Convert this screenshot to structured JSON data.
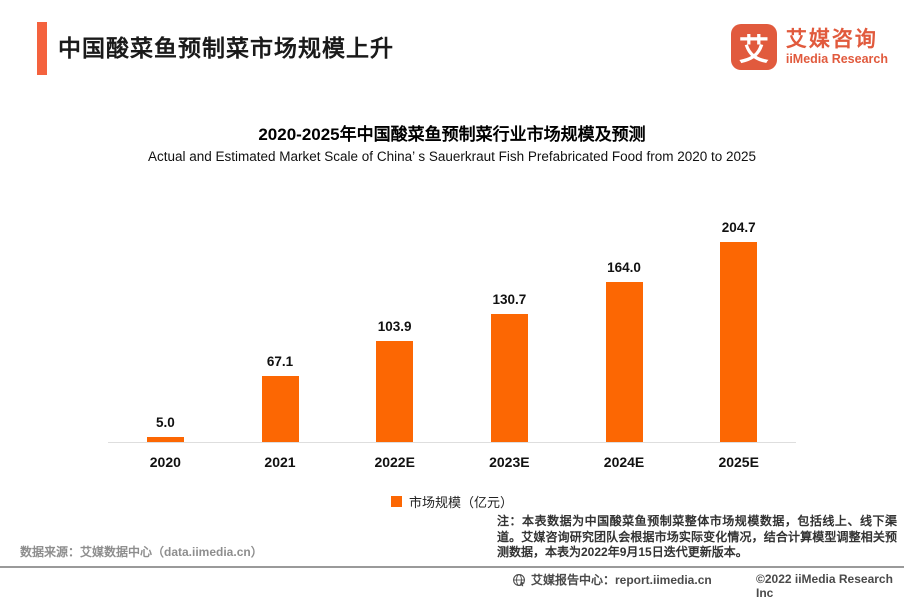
{
  "header": {
    "title": "中国酸菜鱼预制菜市场规模上升",
    "logo": {
      "icon_glyph": "艾",
      "brand_cn": "艾媒咨询",
      "brand_en": "iiMedia Research"
    }
  },
  "chart_data": {
    "type": "bar",
    "title": "2020-2025年中国酸菜鱼预制菜行业市场规模及预测",
    "subtitle": "Actual and Estimated Market Scale of China’ s Sauerkraut Fish Prefabricated Food from 2020 to 2025",
    "categories": [
      "2020",
      "2021",
      "2022E",
      "2023E",
      "2024E",
      "2025E"
    ],
    "values": [
      5.0,
      67.1,
      103.9,
      130.7,
      164.0,
      204.7
    ],
    "value_labels": [
      "5.0",
      "67.1",
      "103.9",
      "130.7",
      "164.0",
      "204.7"
    ],
    "legend": [
      "市场规模（亿元）"
    ],
    "legend_position": "bottom-center",
    "xlabel": "",
    "ylabel": "",
    "ylim": [
      0,
      210
    ],
    "grid": false,
    "bar_color": "#FC6703"
  },
  "note": "注：本表数据为中国酸菜鱼预制菜整体市场规模数据，包括线上、线下渠道。艾媒咨询研究团队会根据市场实际变化情况，结合计算模型调整相关预测数据，本表为2022年9月15日迭代更新版本。",
  "source": "数据来源：艾媒数据中心（data.iimedia.cn）",
  "footer": {
    "report_center": "艾媒报告中心：report.iimedia.cn",
    "copyright": "©2022  iiMedia Research Inc"
  },
  "colors": {
    "bar": "#FC6703",
    "accent": "#F4623E",
    "logo": "#E15A3D",
    "axis_line": "#DEDEDE"
  }
}
